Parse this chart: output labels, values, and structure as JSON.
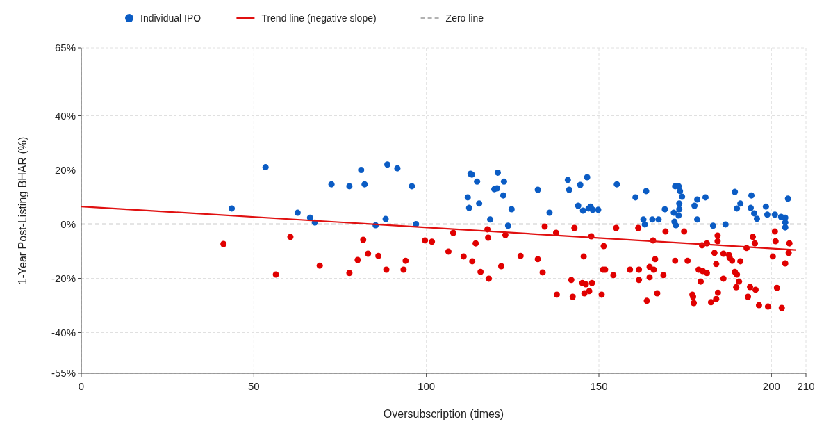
{
  "chart_data": {
    "type": "scatter",
    "xlabel": "Oversubscription (times)",
    "ylabel": "1-Year Post-Listing BHAR (%)",
    "xlim": [
      0,
      210
    ],
    "ylim": [
      -55,
      65
    ],
    "xticks": [
      0,
      50,
      100,
      150,
      200,
      210
    ],
    "yticks": [
      {
        "value": -55,
        "label": "-55%"
      },
      {
        "value": -40,
        "label": "-40%"
      },
      {
        "value": -20,
        "label": "-20%"
      },
      {
        "value": 0,
        "label": "0%"
      },
      {
        "value": 20,
        "label": "20%"
      },
      {
        "value": 40,
        "label": "40%"
      },
      {
        "value": 65,
        "label": "65%"
      }
    ],
    "grid": true,
    "legend": "top left",
    "series": [
      {
        "name": "Individual IPO",
        "marker": "circle",
        "color": "#0b5cc4",
        "x": [
          43.6,
          53.4,
          62.7,
          66.3,
          67.7,
          72.5,
          77.7,
          81.1,
          82.1,
          85.3,
          88.2,
          88.7,
          91.6,
          95.8,
          97,
          112.8,
          113.2,
          114.7,
          120.7,
          122.5,
          119.7,
          120.5,
          112,
          112.4,
          115.3,
          122.3,
          124.7,
          118.5,
          123.7,
          132.3,
          135.7,
          141,
          141.4,
          144.6,
          146.6,
          144,
          145.4,
          147,
          147.6,
          148.2,
          149.8,
          155.2,
          160.6,
          163.7,
          162.9,
          163.3,
          165.5,
          167.3,
          169.1,
          172.1,
          173.1,
          173.5,
          174.1,
          171.7,
          173.3,
          173.3,
          173.1,
          171.9,
          172.3,
          178.5,
          177.7,
          180.9,
          178.5,
          183.1,
          186.7,
          189.4,
          191,
          190,
          194.2,
          194,
          195,
          195.8,
          198.4,
          198.8,
          201,
          202.8,
          204,
          204,
          204,
          204.8
        ],
        "values": [
          5.8,
          21,
          4.2,
          2.4,
          0.6,
          14.7,
          14,
          20,
          14.7,
          -0.4,
          1.9,
          22,
          20.6,
          14,
          0,
          18.6,
          18.3,
          15.7,
          19,
          15.7,
          12.9,
          13.2,
          9.9,
          6,
          7.6,
          10.6,
          5.5,
          1.7,
          -0.6,
          12.7,
          4.2,
          16.3,
          12.7,
          14.5,
          17.3,
          6.8,
          5,
          5.8,
          6.5,
          5.3,
          5.3,
          14.7,
          9.9,
          12.2,
          1.7,
          -0.1,
          1.7,
          1.7,
          5.5,
          14,
          14,
          12.2,
          10.1,
          4.2,
          7.6,
          5.5,
          3.2,
          0.9,
          -0.4,
          9.1,
          6.8,
          9.9,
          1.7,
          -0.6,
          -0.1,
          11.9,
          7.6,
          5.8,
          10.6,
          6,
          4,
          2,
          6.5,
          3.5,
          3.5,
          2.7,
          2.4,
          0.6,
          -1.2,
          9.4
        ]
      },
      {
        "marker": "circle",
        "color": "#e00000",
        "x": [
          41.2,
          56.4,
          60.6,
          69.1,
          77.7,
          80.1,
          81.7,
          83.1,
          86.1,
          88.4,
          93.4,
          94,
          99.6,
          101.6,
          106.4,
          107.8,
          110.8,
          113.3,
          114.3,
          115.7,
          117.7,
          117.9,
          118.1,
          121.7,
          122.9,
          127.3,
          132.3,
          133.7,
          134.3,
          137.6,
          137.8,
          142,
          142.4,
          142.9,
          145.6,
          145.2,
          145.8,
          146.2,
          147.2,
          148,
          147.8,
          150.8,
          151.2,
          151.8,
          151.4,
          154.2,
          155,
          161.4,
          159,
          161.6,
          161.6,
          163.9,
          164.7,
          164.7,
          165.9,
          165.7,
          166.3,
          166.9,
          168.7,
          169.3,
          172.1,
          174.7,
          175.7,
          177.1,
          177.3,
          177.5,
          178.9,
          179.5,
          179.9,
          180.1,
          181.3,
          181.3,
          182.5,
          183.5,
          184,
          184,
          184.4,
          184.4,
          184.5,
          186.1,
          186.1,
          187.7,
          187.9,
          188.6,
          189.4,
          190,
          190.6,
          189.8,
          191,
          192.8,
          193.2,
          193.8,
          194.6,
          195.2,
          195.4,
          196.4,
          199,
          200.4,
          201,
          201.2,
          201.6,
          203,
          204,
          205.2,
          205
        ],
        "values": [
          -7.3,
          -18.6,
          -4.7,
          -15.3,
          -18,
          -13.2,
          -5.8,
          -10.9,
          -11.7,
          -16.8,
          -16.8,
          -13.5,
          -6,
          -6.5,
          -10.1,
          -3.2,
          -11.9,
          -13.7,
          -7.1,
          -17.6,
          -1.9,
          -5,
          -20.1,
          -15.5,
          -4,
          -11.7,
          -12.9,
          -17.8,
          -0.9,
          -3.2,
          -26,
          -20.6,
          -26.8,
          -1.4,
          -11.9,
          -21.7,
          -25.5,
          -22.2,
          -24.7,
          -21.7,
          -4.5,
          -26,
          -16.8,
          -16.8,
          -8.1,
          -18.8,
          -1.4,
          -1.4,
          -16.8,
          -16.8,
          -20.6,
          -28.3,
          -19.6,
          -15.8,
          -16.8,
          -6,
          -12.9,
          -25.5,
          -18.8,
          -2.7,
          -13.5,
          -2.7,
          -13.5,
          -26,
          -26.8,
          -29.1,
          -16.8,
          -21.2,
          -7.8,
          -17.3,
          -18,
          -7.1,
          -28.8,
          -10.6,
          -14.7,
          -27.6,
          -4.2,
          -6.3,
          -25.3,
          -10.9,
          -20.1,
          -11.4,
          -12.4,
          -13.5,
          -17.6,
          -18.6,
          -21.2,
          -23.3,
          -13.7,
          -8.8,
          -26.8,
          -23.2,
          -4.7,
          -7.1,
          -24.2,
          -29.9,
          -30.4,
          -11.9,
          -2.7,
          -6.3,
          -23.5,
          -30.9,
          -14.5,
          -7.1,
          -10.6
        ]
      },
      {
        "name": "Trend line (negative slope)",
        "type": "line",
        "color": "#e01010",
        "x": [
          0,
          207
        ],
        "values": [
          6.5,
          -9.5
        ]
      }
    ],
    "ref_lines": [
      {
        "axis": "y",
        "value": 0,
        "label": "Zero line",
        "color": "#999999",
        "line_style": "dashed"
      }
    ]
  }
}
